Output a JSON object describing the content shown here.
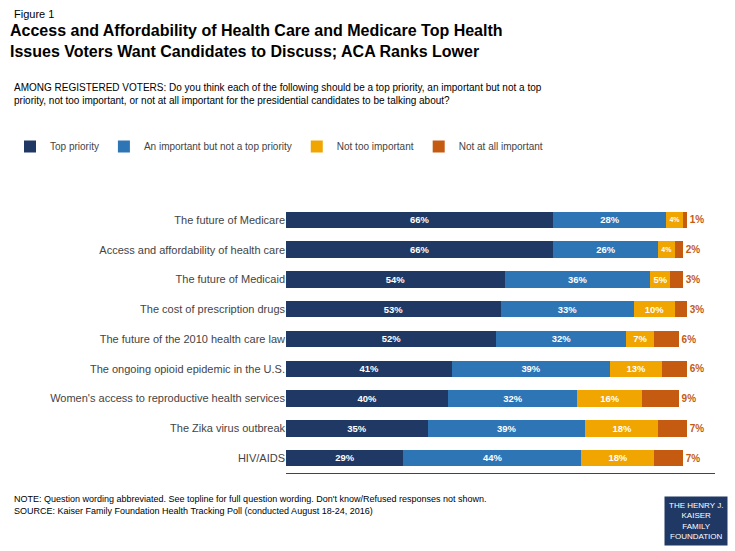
{
  "chart_data": {
    "type": "bar",
    "orientation": "horizontal",
    "stacked": true,
    "title": "Access and Affordability of Health Care and Medicare Top Health\nIssues Voters Want Candidates to Discuss; ACA Ranks Lower",
    "subtitle": "AMONG REGISTERED VOTERS: Do you think each of the following should be a top priority, an important but not a top\npriority, not too important, or not at all important for the presidential candidates to be talking about?",
    "annotations": [
      "Figure 1",
      "NOTE: Question wording abbreviated. See topline for full question wording. Don't know/Refused responses not shown.\nSOURCE: Kaiser Family Foundation Health Tracking Poll (conducted August 18-24, 2016)",
      "THE HENRY J.\nKAISER\nFAMILY\nFOUNDATION"
    ],
    "categories": [
      "The future of Medicare",
      "Access and affordability of health care",
      "The future of Medicaid",
      "The cost of prescription drugs",
      "The future of the 2010 health care law",
      "The ongoing opioid epidemic in the U.S.",
      "Women's access to reproductive health services",
      "The Zika virus outbreak",
      "HIV/AIDS"
    ],
    "series": [
      {
        "name": "Top priority",
        "color": "#1f3864",
        "values": [
          66,
          66,
          54,
          53,
          52,
          41,
          40,
          35,
          29
        ],
        "value_labels": [
          "66%",
          "66%",
          "54%",
          "53%",
          "52%",
          "41%",
          "40%",
          "35%",
          "29%"
        ]
      },
      {
        "name": "An important but not a top priority",
        "color": "#2e75b6",
        "values": [
          28,
          26,
          36,
          33,
          32,
          39,
          32,
          39,
          44
        ],
        "value_labels": [
          "28%",
          "26%",
          "36%",
          "33%",
          "32%",
          "39%",
          "32%",
          "39%",
          "44%"
        ]
      },
      {
        "name": "Not too important",
        "color": "#f0a500",
        "values": [
          4,
          4,
          5,
          10,
          7,
          13,
          16,
          18,
          18
        ],
        "value_labels": [
          "4%",
          "4%",
          "5%",
          "10%",
          "7%",
          "13%",
          "16%",
          "18%",
          "18%"
        ]
      },
      {
        "name": "Not at all important",
        "color": "#c55a11",
        "values": [
          1,
          2,
          3,
          3,
          6,
          6,
          9,
          7,
          7
        ],
        "value_labels": [
          "1%",
          "2%",
          "3%",
          "3%",
          "6%",
          "6%",
          "9%",
          "7%",
          "7%"
        ]
      }
    ],
    "xlim": [
      0,
      106
    ],
    "xticks": [],
    "tick_labels": "y",
    "data_labels": true,
    "legend": "top",
    "grid": false
  }
}
